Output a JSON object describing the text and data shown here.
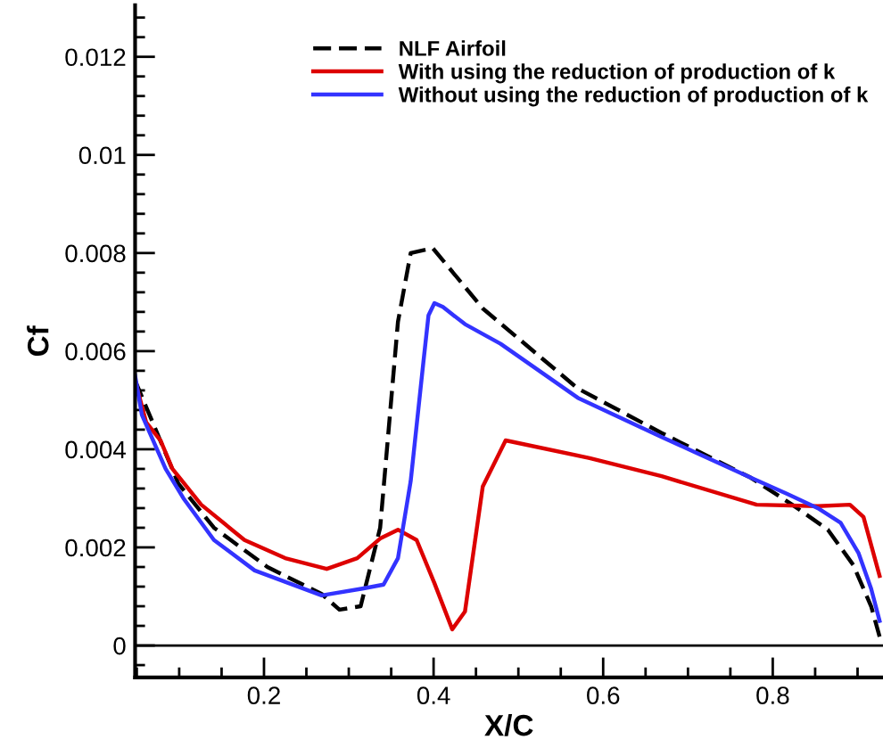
{
  "chart_data": {
    "type": "line",
    "xlabel": "X/C",
    "ylabel": "Cf",
    "xlim": [
      0.048,
      0.93
    ],
    "ylim": [
      -0.00065,
      0.01305
    ],
    "xticks": [
      {
        "value": 0.05,
        "label": null
      },
      {
        "value": 0.1,
        "label": null
      },
      {
        "value": 0.15,
        "label": null
      },
      0.2,
      {
        "value": 0.25,
        "label": null
      },
      {
        "value": 0.3,
        "label": null
      },
      {
        "value": 0.35,
        "label": null
      },
      0.4,
      {
        "value": 0.45,
        "label": null
      },
      {
        "value": 0.5,
        "label": null
      },
      {
        "value": 0.55,
        "label": null
      },
      0.6,
      {
        "value": 0.65,
        "label": null
      },
      {
        "value": 0.7,
        "label": null
      },
      {
        "value": 0.75,
        "label": null
      },
      0.8,
      {
        "value": 0.85,
        "label": null
      },
      {
        "value": 0.9,
        "label": null
      }
    ],
    "yticks": [
      {
        "value": -0.0004,
        "label": null
      },
      0,
      {
        "value": 0.0004,
        "label": null
      },
      {
        "value": 0.0008,
        "label": null
      },
      {
        "value": 0.0012,
        "label": null
      },
      {
        "value": 0.0016,
        "label": null
      },
      0.002,
      {
        "value": 0.0024,
        "label": null
      },
      {
        "value": 0.0028,
        "label": null
      },
      {
        "value": 0.0032,
        "label": null
      },
      {
        "value": 0.0036,
        "label": null
      },
      0.004,
      {
        "value": 0.0044,
        "label": null
      },
      {
        "value": 0.0048,
        "label": null
      },
      {
        "value": 0.0052,
        "label": null
      },
      {
        "value": 0.0056,
        "label": null
      },
      0.006,
      {
        "value": 0.0064,
        "label": null
      },
      {
        "value": 0.0068,
        "label": null
      },
      {
        "value": 0.0072,
        "label": null
      },
      {
        "value": 0.0076,
        "label": null
      },
      0.008,
      {
        "value": 0.0084,
        "label": null
      },
      {
        "value": 0.0088,
        "label": null
      },
      {
        "value": 0.0092,
        "label": null
      },
      {
        "value": 0.0096,
        "label": null
      },
      0.01,
      {
        "value": 0.0104,
        "label": null
      },
      {
        "value": 0.0108,
        "label": null
      },
      {
        "value": 0.0112,
        "label": null
      },
      {
        "value": 0.0116,
        "label": null
      },
      0.012,
      {
        "value": 0.0124,
        "label": null
      },
      {
        "value": 0.0128,
        "label": null
      }
    ],
    "grid": false,
    "legend": "top right",
    "marker": "none",
    "ref_lines": [
      {
        "axis": "y",
        "value": 0,
        "color": "#000000",
        "line_style": "solid"
      }
    ],
    "series": [
      {
        "name": "NLF Airfoil",
        "color": "#000000",
        "line_style": "dashed",
        "x": [
          0.048,
          0.099,
          0.141,
          0.204,
          0.268,
          0.289,
          0.314,
          0.337,
          0.358,
          0.373,
          0.399,
          0.458,
          0.57,
          0.669,
          0.774,
          0.823,
          0.865,
          0.895,
          0.916,
          0.926
        ],
        "values": [
          0.0054,
          0.0033,
          0.0024,
          0.0016,
          0.00105,
          0.00073,
          0.0008,
          0.0024,
          0.0066,
          0.008,
          0.0081,
          0.00687,
          0.00524,
          0.00433,
          0.00342,
          0.00287,
          0.00236,
          0.00164,
          0.0008,
          0.00018
        ]
      },
      {
        "name": "With using the reduction of production of k",
        "color": "#dd0000",
        "line_style": "solid",
        "x": [
          0.048,
          0.061,
          0.078,
          0.092,
          0.126,
          0.177,
          0.225,
          0.274,
          0.31,
          0.337,
          0.358,
          0.38,
          0.401,
          0.422,
          0.437,
          0.458,
          0.485,
          0.584,
          0.669,
          0.781,
          0.853,
          0.891,
          0.907,
          0.926
        ],
        "values": [
          0.0054,
          0.00455,
          0.00418,
          0.0036,
          0.00287,
          0.00215,
          0.00178,
          0.00156,
          0.00178,
          0.00218,
          0.00236,
          0.00215,
          0.00127,
          0.00033,
          0.00069,
          0.00324,
          0.00418,
          0.00382,
          0.00345,
          0.00287,
          0.00284,
          0.00287,
          0.00262,
          0.00142
        ]
      },
      {
        "name": "Without using the reduction of production of k",
        "color": "#3333ff",
        "line_style": "solid",
        "x": [
          0.048,
          0.056,
          0.084,
          0.105,
          0.141,
          0.189,
          0.268,
          0.316,
          0.341,
          0.358,
          0.373,
          0.388,
          0.394,
          0.401,
          0.411,
          0.437,
          0.479,
          0.57,
          0.669,
          0.774,
          0.817,
          0.853,
          0.88,
          0.901,
          0.916,
          0.926
        ],
        "values": [
          0.0055,
          0.0047,
          0.0036,
          0.003,
          0.00215,
          0.00153,
          0.00102,
          0.00116,
          0.00124,
          0.00178,
          0.00335,
          0.00578,
          0.00673,
          0.00698,
          0.0069,
          0.00655,
          0.00615,
          0.00505,
          0.00425,
          0.00342,
          0.00309,
          0.0028,
          0.0025,
          0.00189,
          0.00116,
          0.0005
        ]
      }
    ]
  }
}
